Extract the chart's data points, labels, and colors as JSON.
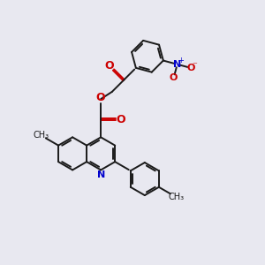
{
  "bg_color": "#e8e8f0",
  "bond_color": "#1a1a1a",
  "nitrogen_color": "#0000cc",
  "oxygen_color": "#cc0000",
  "lw": 1.4,
  "ring_r": 0.62,
  "xlim": [
    0,
    10
  ],
  "ylim": [
    0,
    10
  ]
}
